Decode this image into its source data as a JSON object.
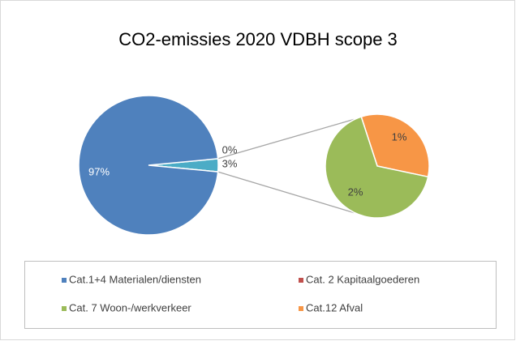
{
  "chart_data": {
    "type": "pie-of-pie",
    "title": "CO2-emissies 2020 VDBH scope 3",
    "categories": [
      "Cat.1+4 Materialen/diensten",
      "Cat. 2 Kapitaalgoederen",
      "Cat. 7 Woon-/werkverkeer",
      "Cat.12 Afval"
    ],
    "values": [
      97,
      0,
      2,
      1
    ],
    "value_labels": [
      "97%",
      "0%",
      "2%",
      "1%"
    ],
    "colors": [
      "#4f81bd",
      "#c0504d",
      "#9bbb59",
      "#f79646"
    ],
    "secondary": [
      2,
      3
    ],
    "other_value": 3,
    "other_label": "3%",
    "other_color": "#4bacc6",
    "legend": "bottom"
  }
}
